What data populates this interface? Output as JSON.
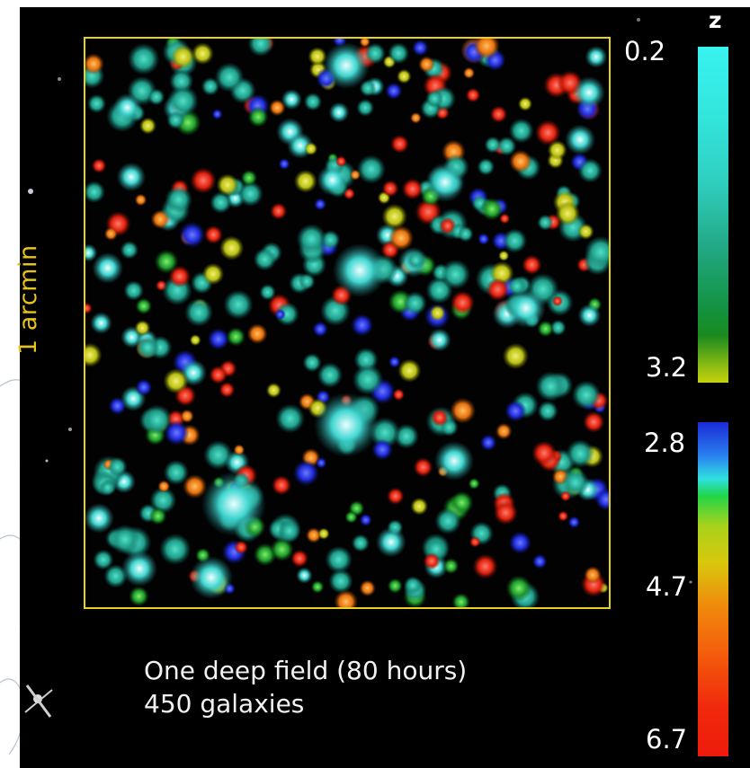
{
  "colorbars": {
    "symbol": "z",
    "low_range": {
      "top_label": "0.2",
      "bottom_label": "3.2"
    },
    "high_range": {
      "top_label": "2.8",
      "mid_label": "4.7",
      "bottom_label": "6.7"
    }
  },
  "field": {
    "scale_label": "1 arcmin",
    "frame_color": "#e6d21f"
  },
  "caption": {
    "line1": "One deep field (80 hours)",
    "line2": "450 galaxies"
  },
  "colors": {
    "cyan_low_z": "#38f2ef",
    "green_mid_z": "#139240",
    "blue_high_z": "#1a2bd8",
    "red_highest_z": "#ee1a0c"
  }
}
